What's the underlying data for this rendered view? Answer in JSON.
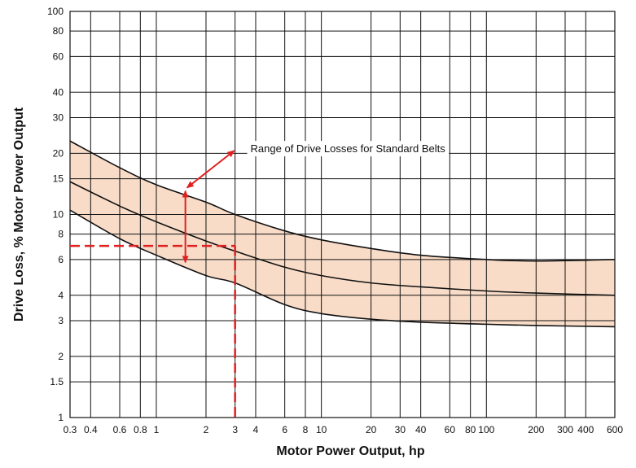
{
  "chart_data": {
    "type": "line",
    "title": "",
    "xlabel": "Motor Power Output, hp",
    "ylabel": "Drive Loss, % Motor Power Output",
    "x_scale": "log",
    "y_scale": "log",
    "xlim": [
      0.3,
      600
    ],
    "ylim": [
      1,
      100
    ],
    "grid": true,
    "x_ticks": [
      0.3,
      0.4,
      0.6,
      0.8,
      1,
      2,
      3,
      4,
      6,
      8,
      10,
      20,
      30,
      40,
      60,
      80,
      100,
      200,
      300,
      400,
      600
    ],
    "x_tick_labels": [
      "0.3",
      "0.4",
      "0.6",
      "0.8",
      "1",
      "2",
      "3",
      "4",
      "6",
      "8",
      "10",
      "20",
      "30",
      "40",
      "60",
      "80",
      "100",
      "200",
      "300",
      "400",
      "600"
    ],
    "y_ticks": [
      1,
      1.5,
      2,
      3,
      4,
      6,
      8,
      10,
      15,
      20,
      30,
      40,
      60,
      80,
      100
    ],
    "y_tick_labels": [
      "1",
      "1.5",
      "2",
      "3",
      "4",
      "6",
      "8",
      "10",
      "15",
      "20",
      "30",
      "40",
      "60",
      "80",
      "100"
    ],
    "x_gridlines": [
      0.3,
      0.4,
      0.6,
      0.8,
      1,
      2,
      3,
      4,
      6,
      8,
      10,
      20,
      30,
      40,
      60,
      80,
      100,
      200,
      300,
      400,
      600
    ],
    "y_gridlines": [
      1,
      1.5,
      2,
      3,
      4,
      6,
      8,
      10,
      15,
      20,
      30,
      40,
      60,
      80,
      100
    ],
    "series": [
      {
        "x": [
          0.3,
          0.6,
          1,
          2,
          3,
          6,
          10,
          20,
          40,
          100,
          200,
          600
        ],
        "y": [
          23,
          17,
          14,
          11.5,
          10,
          8.3,
          7.5,
          6.8,
          6.3,
          6.0,
          5.9,
          6.0
        ]
      },
      {
        "x": [
          0.3,
          0.6,
          1,
          2,
          3,
          6,
          10,
          20,
          40,
          100,
          200,
          600
        ],
        "y": [
          14.5,
          11,
          9.2,
          7.4,
          6.6,
          5.5,
          5.0,
          4.6,
          4.4,
          4.2,
          4.1,
          4.0
        ]
      },
      {
        "x": [
          0.3,
          0.6,
          1,
          2,
          3,
          6,
          10,
          20,
          40,
          100,
          200,
          600
        ],
        "y": [
          10.5,
          7.6,
          6.3,
          5.0,
          4.6,
          3.6,
          3.25,
          3.05,
          2.95,
          2.88,
          2.84,
          2.8
        ]
      }
    ],
    "band": {
      "upper_series": 0,
      "lower_series": 2,
      "fill": "#f8dcc8"
    },
    "colors": {
      "curve": "#111111",
      "grid": "#111111",
      "marker": "#e02020",
      "fill": "#f8dcc8"
    },
    "reading_example": {
      "x": 3,
      "y": 7
    },
    "range_marker": {
      "x": 1.5,
      "y_top": 13.3,
      "y_bottom": 5.7
    },
    "annotation": {
      "text": "Range of Drive Losses for Standard Belts",
      "anchor": {
        "x": 3.1,
        "y": 21
      },
      "arrow_to": {
        "x": 1.5,
        "y": 13.3
      }
    }
  }
}
